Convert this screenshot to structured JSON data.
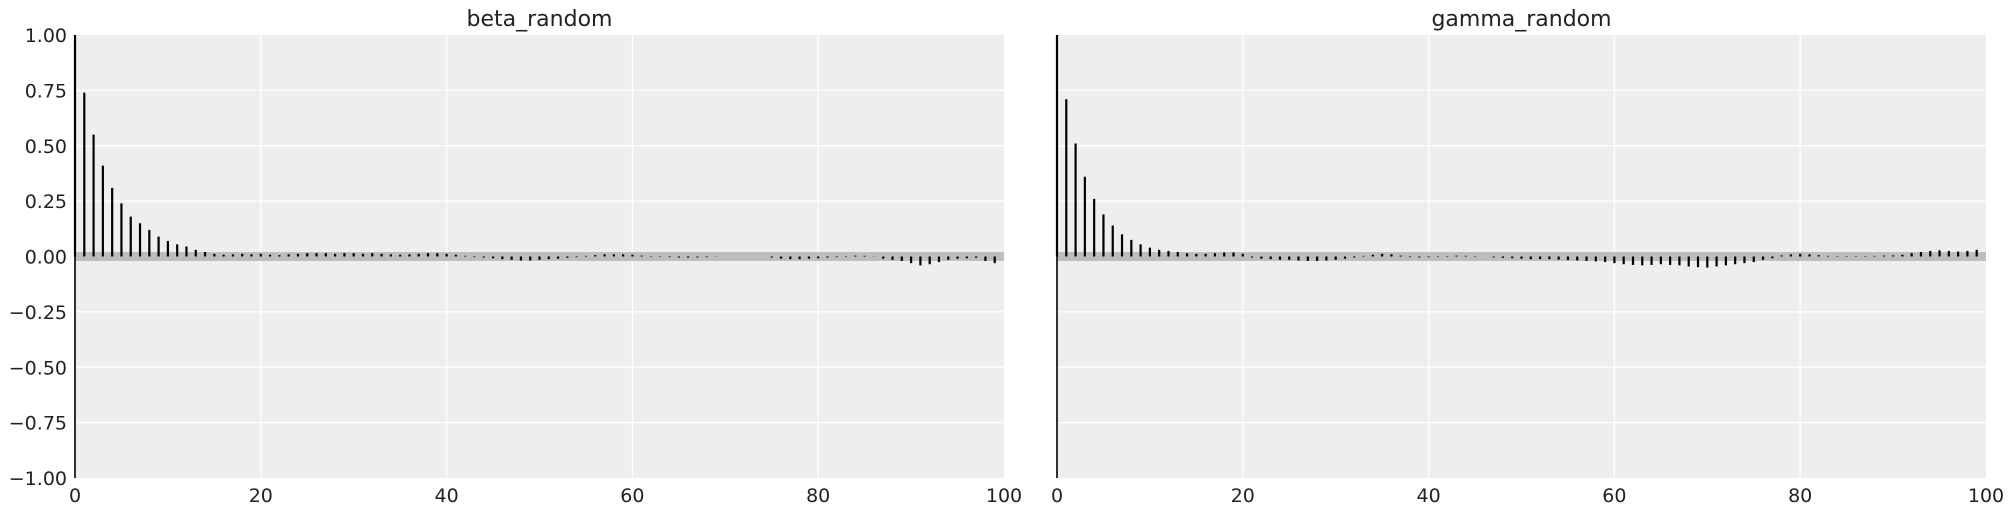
{
  "chart_data": [
    {
      "type": "bar",
      "title": "beta_random",
      "xlabel": "",
      "ylabel": "",
      "xlim": [
        0,
        100
      ],
      "ylim": [
        -1,
        1
      ],
      "x_ticks": [
        0,
        20,
        40,
        60,
        80,
        100
      ],
      "y_ticks": [
        1.0,
        0.75,
        0.5,
        0.25,
        0.0,
        -0.25,
        -0.5,
        -0.75,
        -1.0
      ],
      "x_tick_labels": [
        "0",
        "20",
        "40",
        "60",
        "80",
        "100"
      ],
      "y_tick_labels": [
        "1.00",
        "0.75",
        "0.50",
        "0.25",
        "0.00",
        "−0.25",
        "−0.50",
        "−0.75",
        "−1.00"
      ],
      "confidence_band": 0.02,
      "grid": true,
      "lags": [
        0,
        1,
        2,
        3,
        4,
        5,
        6,
        7,
        8,
        9,
        10,
        11,
        12,
        13,
        14,
        15,
        16,
        17,
        18,
        19,
        20,
        21,
        22,
        23,
        24,
        25,
        26,
        27,
        28,
        29,
        30,
        31,
        32,
        33,
        34,
        35,
        36,
        37,
        38,
        39,
        40,
        41,
        42,
        43,
        44,
        45,
        46,
        47,
        48,
        49,
        50,
        51,
        52,
        53,
        54,
        55,
        56,
        57,
        58,
        59,
        60,
        61,
        62,
        63,
        64,
        65,
        66,
        67,
        68,
        69,
        70,
        71,
        72,
        73,
        74,
        75,
        76,
        77,
        78,
        79,
        80,
        81,
        82,
        83,
        84,
        85,
        86,
        87,
        88,
        89,
        90,
        91,
        92,
        93,
        94,
        95,
        96,
        97,
        98,
        99
      ],
      "values": [
        1.0,
        0.74,
        0.55,
        0.41,
        0.31,
        0.24,
        0.18,
        0.15,
        0.12,
        0.09,
        0.07,
        0.055,
        0.045,
        0.03,
        0.02,
        0.012,
        0.008,
        0.01,
        0.012,
        0.01,
        0.012,
        0.008,
        0.006,
        0.01,
        0.012,
        0.015,
        0.015,
        0.015,
        0.012,
        0.015,
        0.015,
        0.012,
        0.015,
        0.012,
        0.01,
        0.008,
        0.01,
        0.012,
        0.015,
        0.015,
        0.012,
        0.008,
        0.003,
        -0.003,
        -0.005,
        -0.008,
        -0.012,
        -0.015,
        -0.018,
        -0.018,
        -0.015,
        -0.012,
        -0.01,
        -0.006,
        -0.003,
        0.003,
        0.006,
        0.01,
        0.01,
        0.01,
        0.008,
        0.004,
        0.002,
        -0.002,
        -0.003,
        -0.005,
        -0.005,
        -0.004,
        -0.003,
        -0.001,
        0.0,
        0.0,
        0.0,
        0.0,
        0.0,
        -0.005,
        -0.01,
        -0.012,
        -0.012,
        -0.01,
        -0.008,
        -0.005,
        -0.003,
        0.002,
        0.004,
        0.003,
        0.001,
        -0.01,
        -0.015,
        -0.02,
        -0.03,
        -0.04,
        -0.035,
        -0.025,
        -0.015,
        -0.01,
        -0.008,
        -0.006,
        -0.02,
        -0.03
      ]
    },
    {
      "type": "bar",
      "title": "gamma_random",
      "xlabel": "",
      "ylabel": "",
      "xlim": [
        0,
        100
      ],
      "ylim": [
        -1,
        1
      ],
      "x_ticks": [
        0,
        20,
        40,
        60,
        80,
        100
      ],
      "y_ticks": [
        1.0,
        0.75,
        0.5,
        0.25,
        0.0,
        -0.25,
        -0.5,
        -0.75,
        -1.0
      ],
      "x_tick_labels": [
        "0",
        "20",
        "40",
        "60",
        "80",
        "100"
      ],
      "y_tick_labels": [],
      "confidence_band": 0.02,
      "grid": true,
      "lags": [
        0,
        1,
        2,
        3,
        4,
        5,
        6,
        7,
        8,
        9,
        10,
        11,
        12,
        13,
        14,
        15,
        16,
        17,
        18,
        19,
        20,
        21,
        22,
        23,
        24,
        25,
        26,
        27,
        28,
        29,
        30,
        31,
        32,
        33,
        34,
        35,
        36,
        37,
        38,
        39,
        40,
        41,
        42,
        43,
        44,
        45,
        46,
        47,
        48,
        49,
        50,
        51,
        52,
        53,
        54,
        55,
        56,
        57,
        58,
        59,
        60,
        61,
        62,
        63,
        64,
        65,
        66,
        67,
        68,
        69,
        70,
        71,
        72,
        73,
        74,
        75,
        76,
        77,
        78,
        79,
        80,
        81,
        82,
        83,
        84,
        85,
        86,
        87,
        88,
        89,
        90,
        91,
        92,
        93,
        94,
        95,
        96,
        97,
        98,
        99
      ],
      "values": [
        1.0,
        0.71,
        0.51,
        0.36,
        0.26,
        0.19,
        0.14,
        0.1,
        0.075,
        0.055,
        0.04,
        0.03,
        0.025,
        0.02,
        0.015,
        0.012,
        0.012,
        0.015,
        0.018,
        0.018,
        0.012,
        -0.005,
        -0.01,
        -0.012,
        -0.015,
        -0.015,
        -0.018,
        -0.02,
        -0.02,
        -0.018,
        -0.015,
        -0.01,
        -0.005,
        0.003,
        0.008,
        0.012,
        0.01,
        0.004,
        -0.003,
        -0.004,
        -0.003,
        -0.002,
        0.002,
        0.004,
        0.003,
        0.002,
        0.0,
        -0.004,
        -0.006,
        -0.008,
        -0.01,
        -0.012,
        -0.012,
        -0.012,
        -0.014,
        -0.016,
        -0.018,
        -0.02,
        -0.022,
        -0.025,
        -0.03,
        -0.035,
        -0.038,
        -0.04,
        -0.038,
        -0.035,
        -0.038,
        -0.04,
        -0.045,
        -0.048,
        -0.05,
        -0.045,
        -0.04,
        -0.035,
        -0.03,
        -0.025,
        -0.015,
        -0.008,
        0.005,
        0.01,
        0.012,
        0.01,
        0.006,
        0.003,
        0.002,
        0.002,
        0.002,
        0.002,
        0.003,
        0.004,
        0.005,
        0.008,
        0.015,
        0.02,
        0.025,
        0.028,
        0.025,
        0.022,
        0.025,
        0.03
      ]
    }
  ]
}
